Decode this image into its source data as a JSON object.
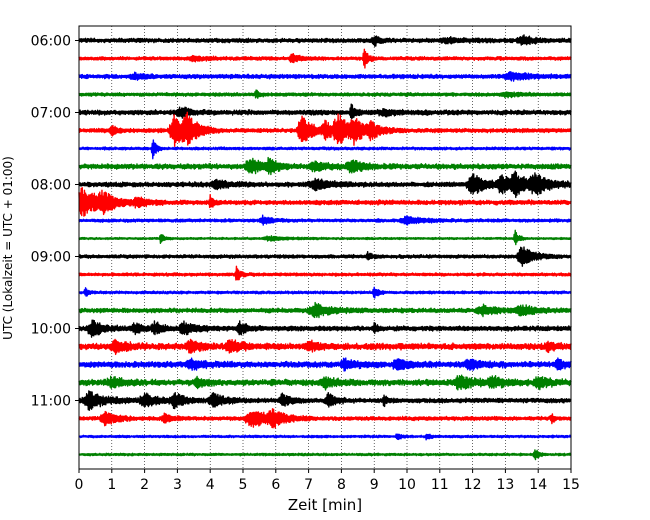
{
  "chart_data": {
    "type": "line",
    "chart_kind": "helicorder",
    "xlabel": "Zeit  [min]",
    "ylabel": "UTC (Lokalzeit = UTC + 01:00)",
    "xlim": [
      0,
      15
    ],
    "x_ticks": [
      "0",
      "1",
      "2",
      "3",
      "4",
      "5",
      "6",
      "7",
      "8",
      "9",
      "10",
      "11",
      "12",
      "13",
      "14",
      "15"
    ],
    "y_ticks": [
      {
        "row": 0,
        "label": "06:00"
      },
      {
        "row": 4,
        "label": "07:00"
      },
      {
        "row": 8,
        "label": "08:00"
      },
      {
        "row": 12,
        "label": "09:00"
      },
      {
        "row": 16,
        "label": "10:00"
      },
      {
        "row": 20,
        "label": "11:00"
      }
    ],
    "grid": "vertical dotted at each minute",
    "trace_colors": [
      "#000000",
      "#ff0000",
      "#0000ff",
      "#008000"
    ],
    "traces": [
      {
        "start": "06:00",
        "color": "#000000",
        "noise": 0.12,
        "events": [
          {
            "t": 9.0,
            "amp": 0.35,
            "dur": 0.15
          },
          {
            "t": 11.2,
            "amp": 0.15,
            "dur": 0.5
          },
          {
            "t": 13.5,
            "amp": 0.3,
            "dur": 0.3
          }
        ]
      },
      {
        "start": "06:15",
        "color": "#ff0000",
        "noise": 0.1,
        "events": [
          {
            "t": 6.5,
            "amp": 0.3,
            "dur": 0.2
          },
          {
            "t": 8.7,
            "amp": 0.7,
            "dur": 0.1
          },
          {
            "t": 3.5,
            "amp": 0.12,
            "dur": 0.4
          }
        ]
      },
      {
        "start": "06:30",
        "color": "#0000ff",
        "noise": 0.12,
        "events": [
          {
            "t": 1.7,
            "amp": 0.2,
            "dur": 0.3
          },
          {
            "t": 13.2,
            "amp": 0.25,
            "dur": 0.5
          }
        ]
      },
      {
        "start": "06:45",
        "color": "#008000",
        "noise": 0.1,
        "events": [
          {
            "t": 5.4,
            "amp": 0.25,
            "dur": 0.1
          },
          {
            "t": 13.0,
            "amp": 0.15,
            "dur": 0.4
          }
        ]
      },
      {
        "start": "07:00",
        "color": "#000000",
        "noise": 0.14,
        "events": [
          {
            "t": 3.1,
            "amp": 0.3,
            "dur": 0.3
          },
          {
            "t": 8.3,
            "amp": 0.55,
            "dur": 0.1
          },
          {
            "t": 9.3,
            "amp": 0.2,
            "dur": 0.4
          }
        ]
      },
      {
        "start": "07:15",
        "color": "#ff0000",
        "noise": 0.12,
        "events": [
          {
            "t": 1.0,
            "amp": 0.3,
            "dur": 0.15
          },
          {
            "t": 2.9,
            "amp": 1.2,
            "dur": 0.3
          },
          {
            "t": 3.3,
            "amp": 0.8,
            "dur": 0.3
          },
          {
            "t": 6.8,
            "amp": 1.0,
            "dur": 0.3
          },
          {
            "t": 7.5,
            "amp": 0.6,
            "dur": 0.2
          },
          {
            "t": 7.9,
            "amp": 1.2,
            "dur": 0.3
          },
          {
            "t": 8.4,
            "amp": 0.7,
            "dur": 0.3
          },
          {
            "t": 8.9,
            "amp": 0.4,
            "dur": 0.3
          }
        ]
      },
      {
        "start": "07:30",
        "color": "#0000ff",
        "noise": 0.08,
        "events": [
          {
            "t": 2.25,
            "amp": 0.9,
            "dur": 0.08
          }
        ]
      },
      {
        "start": "07:45",
        "color": "#008000",
        "noise": 0.15,
        "events": [
          {
            "t": 5.2,
            "amp": 0.55,
            "dur": 0.3
          },
          {
            "t": 5.8,
            "amp": 0.5,
            "dur": 0.2
          },
          {
            "t": 7.2,
            "amp": 0.3,
            "dur": 0.4
          },
          {
            "t": 8.3,
            "amp": 0.4,
            "dur": 0.3
          }
        ]
      },
      {
        "start": "08:00",
        "color": "#000000",
        "noise": 0.14,
        "events": [
          {
            "t": 4.2,
            "amp": 0.3,
            "dur": 0.3
          },
          {
            "t": 7.2,
            "amp": 0.35,
            "dur": 0.4
          },
          {
            "t": 12.0,
            "amp": 0.7,
            "dur": 0.35
          },
          {
            "t": 12.9,
            "amp": 0.6,
            "dur": 0.35
          },
          {
            "t": 13.3,
            "amp": 0.65,
            "dur": 0.3
          },
          {
            "t": 13.9,
            "amp": 0.6,
            "dur": 0.4
          }
        ]
      },
      {
        "start": "08:15",
        "color": "#ff0000",
        "noise": 0.13,
        "events": [
          {
            "t": 0.1,
            "amp": 1.0,
            "dur": 0.5
          },
          {
            "t": 0.7,
            "amp": 0.5,
            "dur": 0.3
          },
          {
            "t": 1.8,
            "amp": 0.3,
            "dur": 0.3
          },
          {
            "t": 4.0,
            "amp": 0.4,
            "dur": 0.1
          }
        ]
      },
      {
        "start": "08:30",
        "color": "#0000ff",
        "noise": 0.09,
        "events": [
          {
            "t": 5.6,
            "amp": 0.3,
            "dur": 0.2
          },
          {
            "t": 10.0,
            "amp": 0.3,
            "dur": 0.4
          }
        ]
      },
      {
        "start": "08:45",
        "color": "#008000",
        "noise": 0.06,
        "events": [
          {
            "t": 2.5,
            "amp": 0.4,
            "dur": 0.08
          },
          {
            "t": 5.8,
            "amp": 0.15,
            "dur": 0.4
          },
          {
            "t": 13.3,
            "amp": 0.5,
            "dur": 0.1
          }
        ]
      },
      {
        "start": "09:00",
        "color": "#000000",
        "noise": 0.1,
        "events": [
          {
            "t": 8.8,
            "amp": 0.3,
            "dur": 0.1
          },
          {
            "t": 13.5,
            "amp": 0.7,
            "dur": 0.3
          }
        ]
      },
      {
        "start": "09:15",
        "color": "#ff0000",
        "noise": 0.09,
        "events": [
          {
            "t": 4.8,
            "amp": 0.55,
            "dur": 0.1
          }
        ]
      },
      {
        "start": "09:30",
        "color": "#0000ff",
        "noise": 0.08,
        "events": [
          {
            "t": 0.2,
            "amp": 0.3,
            "dur": 0.08
          },
          {
            "t": 9.0,
            "amp": 0.4,
            "dur": 0.1
          }
        ]
      },
      {
        "start": "09:45",
        "color": "#008000",
        "noise": 0.13,
        "events": [
          {
            "t": 7.2,
            "amp": 0.45,
            "dur": 0.4
          },
          {
            "t": 12.3,
            "amp": 0.3,
            "dur": 0.4
          },
          {
            "t": 13.5,
            "amp": 0.3,
            "dur": 0.4
          }
        ]
      },
      {
        "start": "10:00",
        "color": "#000000",
        "noise": 0.14,
        "events": [
          {
            "t": 0.4,
            "amp": 0.5,
            "dur": 0.3
          },
          {
            "t": 1.7,
            "amp": 0.4,
            "dur": 0.2
          },
          {
            "t": 2.3,
            "amp": 0.4,
            "dur": 0.2
          },
          {
            "t": 3.2,
            "amp": 0.4,
            "dur": 0.3
          },
          {
            "t": 4.9,
            "amp": 0.4,
            "dur": 0.2
          },
          {
            "t": 9.0,
            "amp": 0.3,
            "dur": 0.1
          }
        ]
      },
      {
        "start": "10:15",
        "color": "#ff0000",
        "noise": 0.18,
        "events": [
          {
            "t": 1.1,
            "amp": 0.4,
            "dur": 0.3
          },
          {
            "t": 3.4,
            "amp": 0.35,
            "dur": 0.3
          },
          {
            "t": 4.6,
            "amp": 0.4,
            "dur": 0.3
          },
          {
            "t": 7.0,
            "amp": 0.3,
            "dur": 0.3
          },
          {
            "t": 14.3,
            "amp": 0.3,
            "dur": 0.2
          }
        ]
      },
      {
        "start": "10:30",
        "color": "#0000ff",
        "noise": 0.17,
        "events": [
          {
            "t": 3.4,
            "amp": 0.3,
            "dur": 0.3
          },
          {
            "t": 8.1,
            "amp": 0.35,
            "dur": 0.3
          },
          {
            "t": 9.7,
            "amp": 0.35,
            "dur": 0.3
          },
          {
            "t": 11.9,
            "amp": 0.3,
            "dur": 0.3
          },
          {
            "t": 14.6,
            "amp": 0.3,
            "dur": 0.2
          }
        ]
      },
      {
        "start": "10:45",
        "color": "#008000",
        "noise": 0.17,
        "events": [
          {
            "t": 1.0,
            "amp": 0.3,
            "dur": 0.3
          },
          {
            "t": 3.6,
            "amp": 0.3,
            "dur": 0.2
          },
          {
            "t": 7.5,
            "amp": 0.35,
            "dur": 0.3
          },
          {
            "t": 11.6,
            "amp": 0.4,
            "dur": 0.4
          },
          {
            "t": 12.6,
            "amp": 0.35,
            "dur": 0.3
          },
          {
            "t": 14.0,
            "amp": 0.35,
            "dur": 0.3
          }
        ]
      },
      {
        "start": "11:00",
        "color": "#000000",
        "noise": 0.13,
        "events": [
          {
            "t": 0.3,
            "amp": 0.6,
            "dur": 0.4
          },
          {
            "t": 2.0,
            "amp": 0.5,
            "dur": 0.3
          },
          {
            "t": 2.9,
            "amp": 0.5,
            "dur": 0.3
          },
          {
            "t": 4.1,
            "amp": 0.5,
            "dur": 0.3
          },
          {
            "t": 6.2,
            "amp": 0.45,
            "dur": 0.2
          },
          {
            "t": 7.6,
            "amp": 0.5,
            "dur": 0.2
          },
          {
            "t": 9.3,
            "amp": 0.3,
            "dur": 0.1
          }
        ]
      },
      {
        "start": "11:15",
        "color": "#ff0000",
        "noise": 0.11,
        "events": [
          {
            "t": 0.8,
            "amp": 0.5,
            "dur": 0.3
          },
          {
            "t": 2.6,
            "amp": 0.3,
            "dur": 0.2
          },
          {
            "t": 5.3,
            "amp": 0.6,
            "dur": 0.5
          },
          {
            "t": 5.9,
            "amp": 0.5,
            "dur": 0.3
          },
          {
            "t": 14.4,
            "amp": 0.3,
            "dur": 0.08
          }
        ]
      },
      {
        "start": "11:30",
        "color": "#0000ff",
        "noise": 0.07,
        "events": [
          {
            "t": 9.7,
            "amp": 0.2,
            "dur": 0.1
          },
          {
            "t": 10.6,
            "amp": 0.2,
            "dur": 0.1
          }
        ]
      },
      {
        "start": "11:45",
        "color": "#008000",
        "noise": 0.07,
        "events": [
          {
            "t": 13.9,
            "amp": 0.4,
            "dur": 0.1
          }
        ]
      }
    ]
  }
}
